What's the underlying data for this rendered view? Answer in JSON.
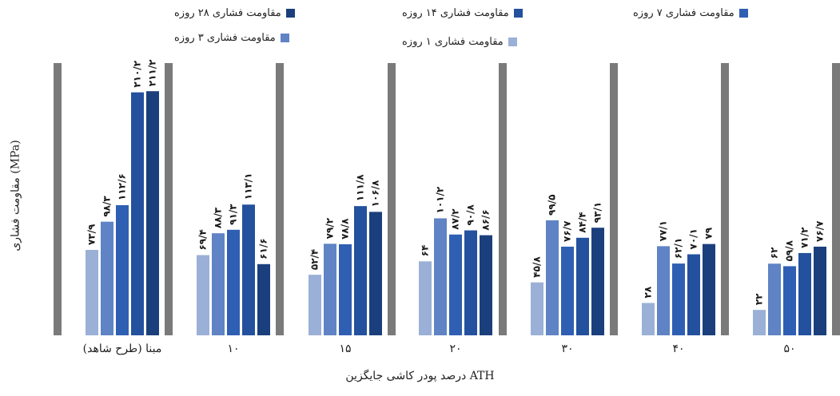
{
  "chart_data": {
    "type": "bar",
    "xlabel": "درصد پودر کاشی جایگزین ATH",
    "ylabel": "مقاومت فشاری (MPa)",
    "categories": [
      "مبنا (طرح شاهد)",
      "۱۰",
      "۱۵",
      "۲۰",
      "۳۰",
      "۴۰",
      "۵۰"
    ],
    "ylim": [
      0,
      230
    ],
    "series": [
      {
        "name": "مقاومت فشاری ۱ روزه",
        "color": "#9bb0d6",
        "values": [
          73.9,
          69.4,
          52.4,
          64,
          45.8,
          28,
          22
        ],
        "labels": [
          "۷۳/۹",
          "۶۹/۴",
          "۵۲/۴",
          "۶۴",
          "۴۵/۸",
          "۲۸",
          "۲۲"
        ]
      },
      {
        "name": "مقاومت فشاری ۳ روزه",
        "color": "#5f83c4",
        "values": [
          98.3,
          88.3,
          79.2,
          101.2,
          99.5,
          77.1,
          62
        ],
        "labels": [
          "۹۸/۳",
          "۸۸/۳",
          "۷۹/۲",
          "۱۰۱/۲",
          "۹۹/۵",
          "۷۷/۱",
          "۶۲"
        ]
      },
      {
        "name": "مقاومت فشاری ۷ روزه",
        "color": "#2f5fb3",
        "values": [
          112.6,
          91.3,
          78.8,
          87.2,
          76.7,
          62.1,
          59.8
        ],
        "labels": [
          "۱۱۲/۶",
          "۹۱/۳",
          "۷۸/۸",
          "۸۷/۲",
          "۷۶/۷",
          "۶۲/۱",
          "۵۹/۸"
        ]
      },
      {
        "name": "مقاومت فشاری ۱۴ روزه",
        "color": "#24519e",
        "values": [
          210.2,
          113.1,
          111.8,
          90.8,
          84.4,
          70.1,
          71.2
        ],
        "labels": [
          "۲۱۰/۲",
          "۱۱۳/۱",
          "۱۱۱/۸",
          "۹۰/۸",
          "۸۴/۴",
          "۷۰/۱",
          "۷۱/۲"
        ]
      },
      {
        "name": "مقاومت فشاری ۲۸ روزه",
        "color": "#1b3f7c",
        "values": [
          211.2,
          61.6,
          106.8,
          86.6,
          93.1,
          79,
          76.7
        ],
        "labels": [
          "۲۱۱/۲",
          "۶۱/۶",
          "۱۰۶/۸",
          "۸۶/۶",
          "۹۳/۱",
          "۷۹",
          "۷۶/۷"
        ]
      }
    ],
    "legend": "top",
    "separator_color": "#7a7a7a"
  }
}
